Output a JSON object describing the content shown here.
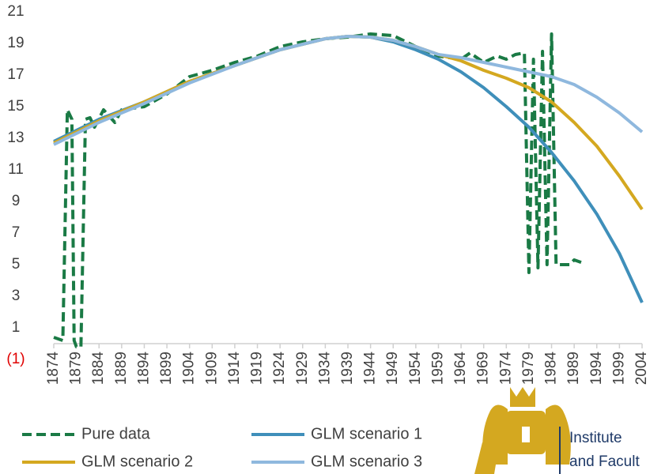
{
  "chart_data": {
    "type": "line",
    "xlim": [
      1874,
      2004
    ],
    "xticks": [
      1874,
      1879,
      1884,
      1889,
      1894,
      1899,
      1904,
      1909,
      1914,
      1919,
      1924,
      1929,
      1934,
      1939,
      1944,
      1949,
      1954,
      1959,
      1964,
      1969,
      1974,
      1979,
      1984,
      1989,
      1994,
      1999,
      2004
    ],
    "ylim": [
      -1,
      21
    ],
    "yticks": [
      {
        "value": -1,
        "label": "(1)"
      },
      1,
      3,
      5,
      7,
      9,
      11,
      13,
      15,
      17,
      19,
      21
    ],
    "series": [
      {
        "name": "Pure data",
        "color": "#1a7a45",
        "dashed": true,
        "x": [
          1874,
          1876,
          1877,
          1878,
          1878.5,
          1879,
          1880,
          1881,
          1882,
          1883,
          1885,
          1887.5,
          1889,
          1894,
          1899,
          1904,
          1909,
          1914,
          1919,
          1924,
          1929,
          1934,
          1939,
          1944,
          1949,
          1954,
          1959,
          1964,
          1966,
          1969,
          1972,
          1974,
          1976,
          1978,
          1979,
          1980,
          1981,
          1982,
          1983,
          1984,
          1985,
          1988,
          1989,
          1991
        ],
        "values": [
          0.4,
          0.2,
          14.8,
          14.2,
          0.2,
          -0.2,
          -0.2,
          14.2,
          14.3,
          13.7,
          14.8,
          14.0,
          14.8,
          15.0,
          15.8,
          16.9,
          17.3,
          17.8,
          18.2,
          18.8,
          19.1,
          19.3,
          19.4,
          19.6,
          19.5,
          18.8,
          18.2,
          18.0,
          18.4,
          17.8,
          18.2,
          18.0,
          18.3,
          18.4,
          4.5,
          18.0,
          4.8,
          18.5,
          5.0,
          19.6,
          5.0,
          5.0,
          5.3,
          5.1
        ]
      },
      {
        "name": "GLM scenario 1",
        "color": "#3f8fba",
        "x": [
          1874,
          1884,
          1894,
          1904,
          1914,
          1924,
          1934,
          1939,
          1944,
          1949,
          1954,
          1959,
          1964,
          1969,
          1974,
          1979,
          1984,
          1989,
          1994,
          1999,
          2004
        ],
        "values": [
          12.8,
          14.2,
          15.3,
          16.6,
          17.6,
          18.6,
          19.3,
          19.45,
          19.4,
          19.1,
          18.6,
          18.0,
          17.2,
          16.2,
          15.0,
          13.7,
          12.1,
          10.3,
          8.2,
          5.7,
          2.6
        ]
      },
      {
        "name": "GLM scenario 2",
        "color": "#d4a820",
        "x": [
          1874,
          1884,
          1894,
          1904,
          1914,
          1924,
          1934,
          1939,
          1944,
          1949,
          1954,
          1959,
          1964,
          1969,
          1974,
          1979,
          1984,
          1989,
          1994,
          1999,
          2004
        ],
        "values": [
          12.7,
          14.1,
          15.3,
          16.6,
          17.6,
          18.6,
          19.3,
          19.45,
          19.4,
          19.2,
          18.8,
          18.3,
          17.9,
          17.3,
          16.8,
          16.2,
          15.3,
          14.0,
          12.5,
          10.6,
          8.5
        ]
      },
      {
        "name": "GLM scenario 3",
        "color": "#8fb8de",
        "x": [
          1874,
          1884,
          1894,
          1904,
          1914,
          1924,
          1934,
          1939,
          1944,
          1949,
          1954,
          1959,
          1964,
          1969,
          1974,
          1979,
          1984,
          1989,
          1994,
          1999,
          2004
        ],
        "values": [
          12.6,
          14.0,
          15.2,
          16.5,
          17.6,
          18.6,
          19.3,
          19.45,
          19.4,
          19.2,
          18.8,
          18.3,
          18.1,
          17.8,
          17.5,
          17.2,
          16.9,
          16.4,
          15.6,
          14.6,
          13.4
        ]
      }
    ]
  },
  "logo": {
    "line1": "Institute",
    "line2": "and Facult"
  }
}
